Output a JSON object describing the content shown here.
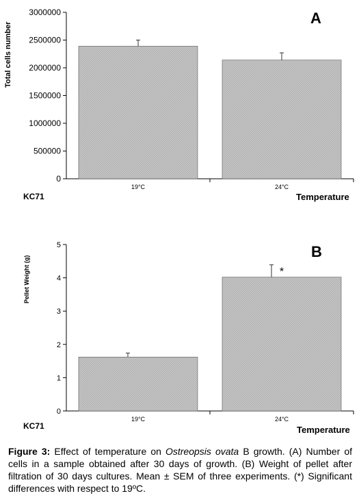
{
  "chart_data": [
    {
      "type": "bar",
      "panel": "A",
      "categories": [
        "19°C",
        "24°C"
      ],
      "values": [
        2390000,
        2140000
      ],
      "errors": [
        110000,
        130000
      ],
      "ylabel": "Total cells number",
      "xlabel": "Temperature",
      "group_label": "KC71",
      "ylim": [
        0,
        3000000
      ],
      "yticks": [
        "0",
        "500000",
        "1000000",
        "1500000",
        "2000000",
        "2500000",
        "3000000"
      ],
      "ytick_values": [
        0,
        500000,
        1000000,
        1500000,
        2000000,
        2500000,
        3000000
      ],
      "bar_color": "#c8c8c8",
      "annotations": []
    },
    {
      "type": "bar",
      "panel": "B",
      "categories": [
        "19°C",
        "24°C"
      ],
      "values": [
        1.62,
        4.02
      ],
      "errors": [
        0.12,
        0.37
      ],
      "ylabel": "Pellet Weight (g)",
      "xlabel": "Temperature",
      "group_label": "KC71",
      "ylim": [
        0,
        5
      ],
      "yticks": [
        "0",
        "1",
        "2",
        "3",
        "4",
        "5"
      ],
      "ytick_values": [
        0,
        1,
        2,
        3,
        4,
        5
      ],
      "bar_color": "#c8c8c8",
      "annotations": [
        "",
        "*"
      ]
    }
  ],
  "caption": {
    "label": "Figure 3:",
    "text_before": " Effect of temperature on ",
    "species": "Ostreopsis ovata",
    "text_after": " B growth. (A) Number of cells in a sample obtained after 30 days of growth. (B) Weight of pellet after filtration of 30 days cultures. Mean ± SEM of three experiments. (*) Significant differences with respect to 19ºC."
  }
}
